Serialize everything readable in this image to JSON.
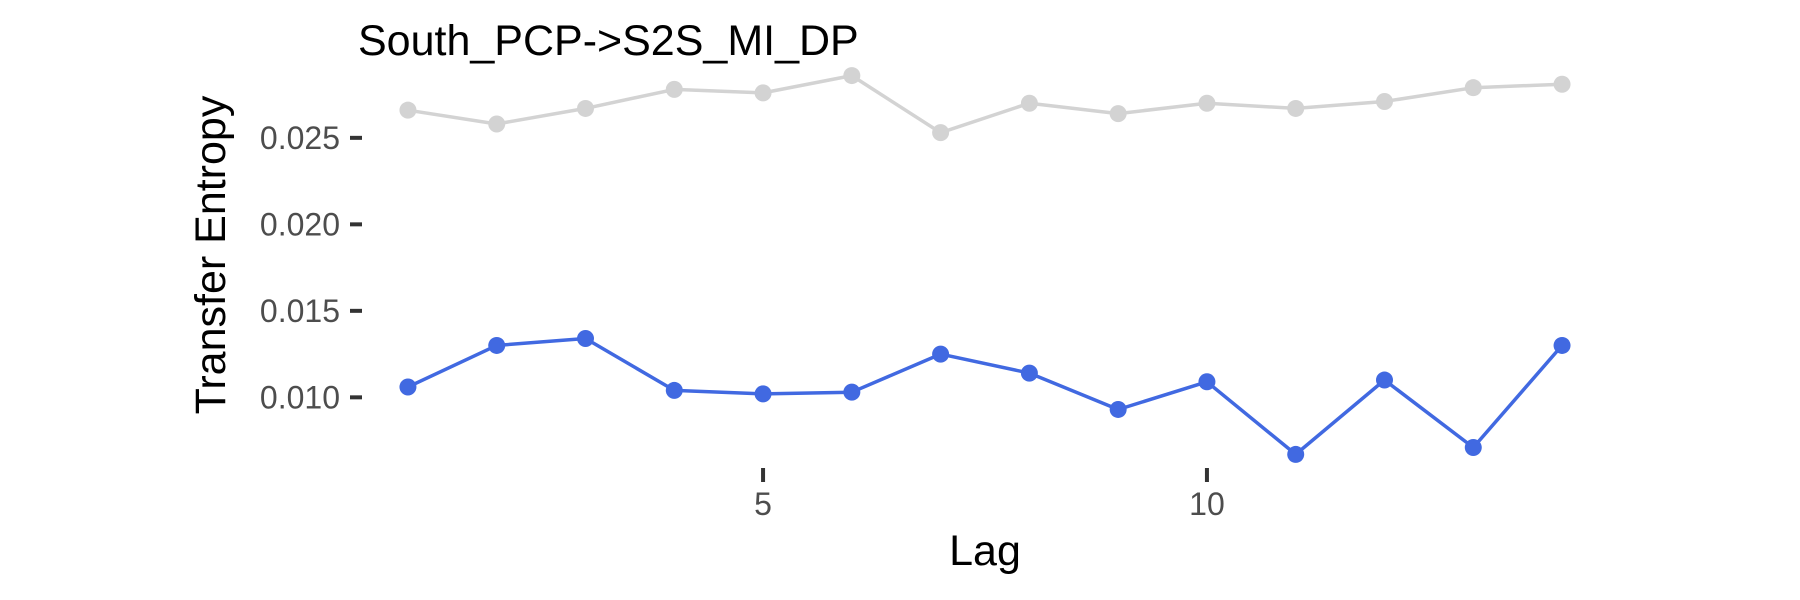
{
  "chart_data": {
    "type": "line",
    "title": "South_PCP->S2S_MI_DP",
    "xlabel": "Lag",
    "ylabel": "Transfer Entropy",
    "x": [
      1,
      2,
      3,
      4,
      5,
      6,
      7,
      8,
      9,
      10,
      11,
      12,
      13,
      14
    ],
    "xlim": [
      0.55,
      14.45
    ],
    "ylim": [
      0.0058,
      0.0295
    ],
    "x_ticks": [
      5,
      10
    ],
    "x_tick_labels": [
      "5",
      "10"
    ],
    "y_ticks": [
      0.01,
      0.015,
      0.02,
      0.025
    ],
    "y_tick_labels": [
      "0.010",
      "0.015",
      "0.020",
      "0.025"
    ],
    "grid": false,
    "legend": "none",
    "series": [
      {
        "color": "#d3d3d3",
        "values": [
          0.0266,
          0.0258,
          0.0267,
          0.0278,
          0.0276,
          0.0286,
          0.0253,
          0.027,
          0.0264,
          0.027,
          0.0267,
          0.0271,
          0.0279,
          0.0281
        ]
      },
      {
        "color": "#4169e1",
        "values": [
          0.0106,
          0.013,
          0.0134,
          0.0104,
          0.0102,
          0.0103,
          0.0125,
          0.0114,
          0.0093,
          0.0109,
          0.0067,
          0.011,
          0.0071,
          0.013
        ]
      }
    ]
  }
}
